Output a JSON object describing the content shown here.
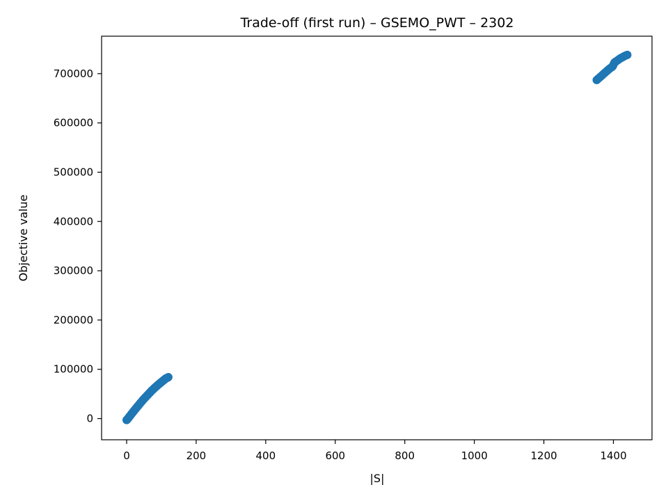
{
  "chart_data": {
    "type": "scatter",
    "title": "Trade-off (first run) – GSEMO_PWT – 2302",
    "xlabel": "|S|",
    "ylabel": "Objective value",
    "xlim": [
      -72,
      1511
    ],
    "ylim": [
      -43000,
      776000
    ],
    "xticks": [
      0,
      200,
      400,
      600,
      800,
      1000,
      1200,
      1400
    ],
    "xtick_labels": [
      "0",
      "200",
      "400",
      "600",
      "800",
      "1000",
      "1200",
      "1400"
    ],
    "yticks": [
      0,
      100000,
      200000,
      300000,
      400000,
      500000,
      600000,
      700000
    ],
    "ytick_labels": [
      "0",
      "100000",
      "200000",
      "300000",
      "400000",
      "500000",
      "600000",
      "700000"
    ],
    "grid": false,
    "marker_color": "#1f77b4",
    "series": [
      {
        "points": [
          [
            0,
            -3000
          ],
          [
            2,
            -1500
          ],
          [
            4,
            0
          ],
          [
            6,
            2000
          ],
          [
            8,
            4000
          ],
          [
            10,
            5500
          ],
          [
            12,
            7500
          ],
          [
            14,
            9500
          ],
          [
            16,
            11000
          ],
          [
            18,
            13000
          ],
          [
            20,
            14500
          ],
          [
            22,
            16500
          ],
          [
            24,
            18000
          ],
          [
            26,
            20000
          ],
          [
            28,
            21500
          ],
          [
            30,
            23500
          ],
          [
            32,
            25000
          ],
          [
            34,
            26500
          ],
          [
            36,
            28500
          ],
          [
            38,
            30000
          ],
          [
            40,
            32000
          ],
          [
            42,
            33500
          ],
          [
            44,
            35000
          ],
          [
            46,
            37000
          ],
          [
            48,
            38500
          ],
          [
            50,
            40000
          ],
          [
            52,
            41500
          ],
          [
            54,
            43000
          ],
          [
            56,
            44500
          ],
          [
            58,
            46000
          ],
          [
            60,
            47500
          ],
          [
            62,
            49000
          ],
          [
            64,
            50500
          ],
          [
            66,
            52000
          ],
          [
            68,
            53500
          ],
          [
            70,
            55000
          ],
          [
            72,
            56500
          ],
          [
            74,
            58000
          ],
          [
            76,
            59000
          ],
          [
            78,
            60500
          ],
          [
            80,
            62000
          ],
          [
            82,
            63000
          ],
          [
            84,
            64500
          ],
          [
            86,
            65500
          ],
          [
            88,
            67000
          ],
          [
            90,
            68000
          ],
          [
            92,
            69500
          ],
          [
            94,
            70500
          ],
          [
            96,
            71500
          ],
          [
            98,
            73000
          ],
          [
            100,
            74000
          ],
          [
            102,
            75000
          ],
          [
            104,
            76500
          ],
          [
            106,
            77500
          ],
          [
            108,
            78500
          ],
          [
            110,
            80000
          ],
          [
            112,
            81000
          ],
          [
            114,
            82000
          ],
          [
            116,
            82500
          ],
          [
            118,
            83000
          ],
          [
            120,
            84000
          ],
          [
            1352,
            687000
          ],
          [
            1356,
            689500
          ],
          [
            1360,
            692000
          ],
          [
            1364,
            694500
          ],
          [
            1368,
            697000
          ],
          [
            1372,
            699500
          ],
          [
            1376,
            702000
          ],
          [
            1380,
            704500
          ],
          [
            1384,
            707000
          ],
          [
            1388,
            709500
          ],
          [
            1392,
            711500
          ],
          [
            1396,
            713500
          ],
          [
            1398,
            715000
          ],
          [
            1400,
            718000
          ],
          [
            1402,
            721000
          ],
          [
            1404,
            723000
          ],
          [
            1408,
            725000
          ],
          [
            1412,
            727000
          ],
          [
            1416,
            729000
          ],
          [
            1420,
            731000
          ],
          [
            1424,
            732500
          ],
          [
            1428,
            734000
          ],
          [
            1432,
            735500
          ],
          [
            1436,
            737000
          ],
          [
            1440,
            738000
          ]
        ]
      }
    ]
  }
}
